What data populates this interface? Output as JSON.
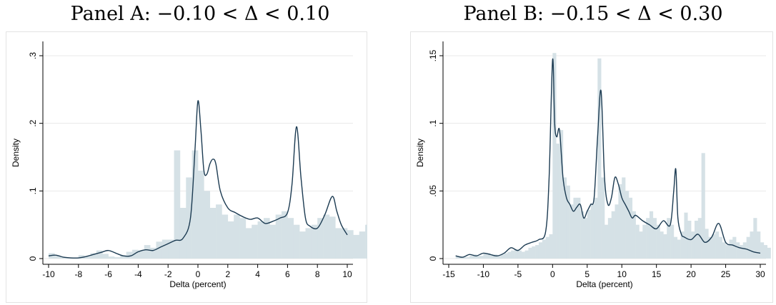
{
  "panels": [
    {
      "title": "Panel A: −0.10 < Δ < 0.10"
    },
    {
      "title": "Panel B: −0.15 < Δ < 0.30"
    }
  ],
  "colors": {
    "bar": "#d5e1e6",
    "curve": "#1c3b52",
    "frame": "#e3e3e3",
    "axis": "#000000"
  },
  "chart_data": [
    {
      "type": "bar",
      "title": "Panel A: −0.10 < Δ < 0.10",
      "xlabel": "Delta (percent)",
      "ylabel": "Density",
      "xlim": [
        -10,
        10
      ],
      "ylim": [
        0,
        0.3
      ],
      "xticks": [
        "-10",
        "-8",
        "-6",
        "-4",
        "-2",
        "0",
        "2",
        "4",
        "6",
        "8",
        "10"
      ],
      "yticks": [
        "0",
        ".1",
        ".2",
        ".3"
      ],
      "grid": true,
      "histogram": {
        "bin_width": 0.4,
        "start": -10,
        "values": [
          0.008,
          0.004,
          0.002,
          0.001,
          0.001,
          0.005,
          0.003,
          0.008,
          0.012,
          0.007,
          0.003,
          0.002,
          0.005,
          0.01,
          0.013,
          0.012,
          0.02,
          0.016,
          0.025,
          0.028,
          0.028,
          0.16,
          0.075,
          0.12,
          0.16,
          0.13,
          0.1,
          0.075,
          0.08,
          0.065,
          0.055,
          0.065,
          0.06,
          0.045,
          0.05,
          0.055,
          0.06,
          0.05,
          0.065,
          0.07,
          0.06,
          0.05,
          0.04,
          0.045,
          0.05,
          0.06,
          0.065,
          0.062,
          0.045,
          0.045,
          0.042,
          0.035,
          0.04,
          0.05,
          0.055,
          0.055,
          0.05,
          0.048,
          0.045,
          0.04
        ]
      },
      "density": {
        "x": [
          -10,
          -9.5,
          -9,
          -8.5,
          -8,
          -7.5,
          -7,
          -6.5,
          -6,
          -5.5,
          -5,
          -4.5,
          -4,
          -3.5,
          -3,
          -2.5,
          -2,
          -1.5,
          -1,
          -0.5,
          -0.2,
          0,
          0.2,
          0.4,
          0.6,
          0.8,
          1,
          1.2,
          1.5,
          2,
          2.5,
          3,
          3.5,
          4,
          4.5,
          5,
          5.5,
          6,
          6.3,
          6.6,
          6.9,
          7.2,
          7.5,
          8,
          8.5,
          9,
          9.3,
          9.6,
          10
        ],
        "y": [
          0.004,
          0.005,
          0.002,
          0.001,
          0.001,
          0.003,
          0.006,
          0.009,
          0.012,
          0.008,
          0.004,
          0.004,
          0.01,
          0.013,
          0.012,
          0.017,
          0.022,
          0.027,
          0.03,
          0.06,
          0.16,
          0.233,
          0.19,
          0.13,
          0.125,
          0.14,
          0.147,
          0.14,
          0.1,
          0.075,
          0.068,
          0.062,
          0.058,
          0.06,
          0.052,
          0.055,
          0.06,
          0.068,
          0.11,
          0.195,
          0.12,
          0.06,
          0.048,
          0.045,
          0.065,
          0.092,
          0.07,
          0.05,
          0.035
        ]
      }
    },
    {
      "type": "bar",
      "title": "Panel B: −0.15 < Δ < 0.30",
      "xlabel": "Delta (percent)",
      "ylabel": "Density",
      "xlim": [
        -15,
        30
      ],
      "ylim": [
        0,
        0.15
      ],
      "xticks": [
        "-15",
        "-10",
        "-5",
        "0",
        "5",
        "10",
        "15",
        "20",
        "25",
        "30"
      ],
      "yticks": [
        "0",
        ".05",
        ".1",
        ".15"
      ],
      "grid": true,
      "histogram": {
        "bin_width": 0.5,
        "start": -14,
        "values": [
          0.002,
          0.001,
          0.001,
          0.001,
          0.002,
          0.003,
          0.002,
          0.002,
          0.004,
          0.004,
          0.003,
          0.003,
          0.002,
          0.003,
          0.004,
          0.005,
          0.006,
          0.007,
          0.006,
          0.005,
          0.006,
          0.008,
          0.009,
          0.01,
          0.012,
          0.014,
          0.016,
          0.018,
          0.152,
          0.085,
          0.095,
          0.06,
          0.054,
          0.04,
          0.045,
          0.045,
          0.035,
          0.03,
          0.036,
          0.04,
          0.045,
          0.148,
          0.06,
          0.025,
          0.03,
          0.035,
          0.04,
          0.055,
          0.06,
          0.05,
          0.045,
          0.035,
          0.025,
          0.02,
          0.025,
          0.03,
          0.035,
          0.03,
          0.025,
          0.02,
          0.018,
          0.03,
          0.025,
          0.016,
          0.014,
          0.02,
          0.034,
          0.028,
          0.02,
          0.028,
          0.03,
          0.078,
          0.022,
          0.016,
          0.018,
          0.02,
          0.016,
          0.012,
          0.01,
          0.014,
          0.016,
          0.012,
          0.01,
          0.012,
          0.016,
          0.02,
          0.03,
          0.02,
          0.012,
          0.01,
          0.008
        ]
      },
      "density": {
        "x": [
          -14,
          -13,
          -12,
          -11,
          -10,
          -9,
          -8,
          -7,
          -6,
          -5,
          -4,
          -3,
          -2,
          -1,
          -0.5,
          0,
          0.3,
          0.6,
          1,
          1.5,
          2,
          2.5,
          3,
          3.5,
          4,
          4.5,
          5,
          5.5,
          6,
          6.5,
          7,
          7.5,
          8,
          8.5,
          9,
          9.5,
          10,
          10.5,
          11,
          11.5,
          12,
          13,
          14,
          15,
          16,
          17,
          17.5,
          17.8,
          18.1,
          18.6,
          19,
          20,
          21,
          22,
          23,
          24,
          25,
          26,
          27,
          28,
          29,
          30
        ],
        "y": [
          0.002,
          0.001,
          0.003,
          0.002,
          0.004,
          0.003,
          0.002,
          0.004,
          0.008,
          0.006,
          0.01,
          0.012,
          0.014,
          0.02,
          0.06,
          0.147,
          0.1,
          0.09,
          0.095,
          0.06,
          0.045,
          0.04,
          0.035,
          0.038,
          0.04,
          0.03,
          0.035,
          0.04,
          0.045,
          0.09,
          0.124,
          0.06,
          0.04,
          0.045,
          0.06,
          0.055,
          0.045,
          0.04,
          0.035,
          0.03,
          0.032,
          0.028,
          0.025,
          0.022,
          0.028,
          0.025,
          0.05,
          0.066,
          0.03,
          0.018,
          0.016,
          0.014,
          0.018,
          0.012,
          0.016,
          0.026,
          0.012,
          0.01,
          0.008,
          0.007,
          0.005,
          0.004
        ]
      }
    }
  ]
}
